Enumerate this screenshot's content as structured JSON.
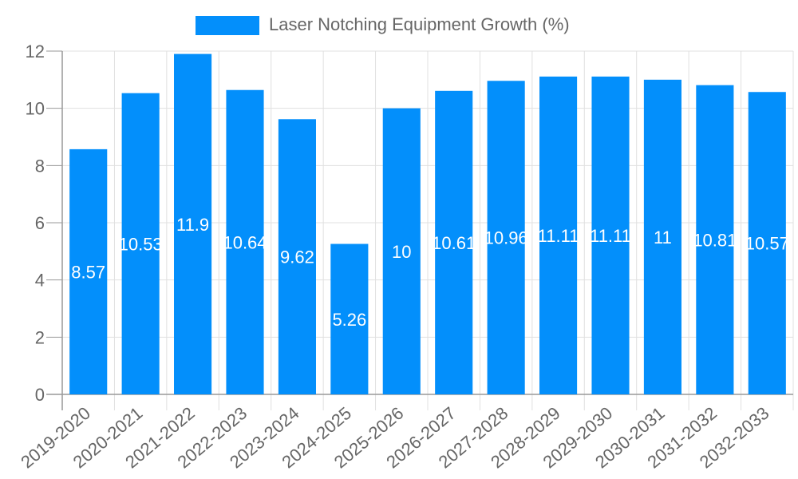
{
  "chart_data": {
    "type": "bar",
    "title": "",
    "legend": [
      "Laser Notching Equipment Growth (%)"
    ],
    "legend_position": "top",
    "categories": [
      "2019-2020",
      "2020-2021",
      "2021-2022",
      "2022-2023",
      "2023-2024",
      "2024-2025",
      "2025-2026",
      "2026-2027",
      "2027-2028",
      "2028-2029",
      "2029-2030",
      "2030-2031",
      "2031-2032",
      "2032-2033"
    ],
    "series": [
      {
        "name": "Laser Notching Equipment Growth (%)",
        "values": [
          8.57,
          10.53,
          11.9,
          10.64,
          9.62,
          5.26,
          10,
          10.61,
          10.96,
          11.11,
          11.11,
          11,
          10.81,
          10.57
        ],
        "color": "#038ffb"
      }
    ],
    "data_labels": [
      "8.57",
      "10.53",
      "11.9",
      "10.64",
      "9.62",
      "5.26",
      "10",
      "10.61",
      "10.96",
      "11.11",
      "11.11",
      "11",
      "10.81",
      "10.57"
    ],
    "xlabel": "",
    "ylabel": "",
    "ylim": [
      0,
      12
    ],
    "yticks": [
      0,
      2,
      4,
      6,
      8,
      10,
      12
    ],
    "grid": true
  }
}
